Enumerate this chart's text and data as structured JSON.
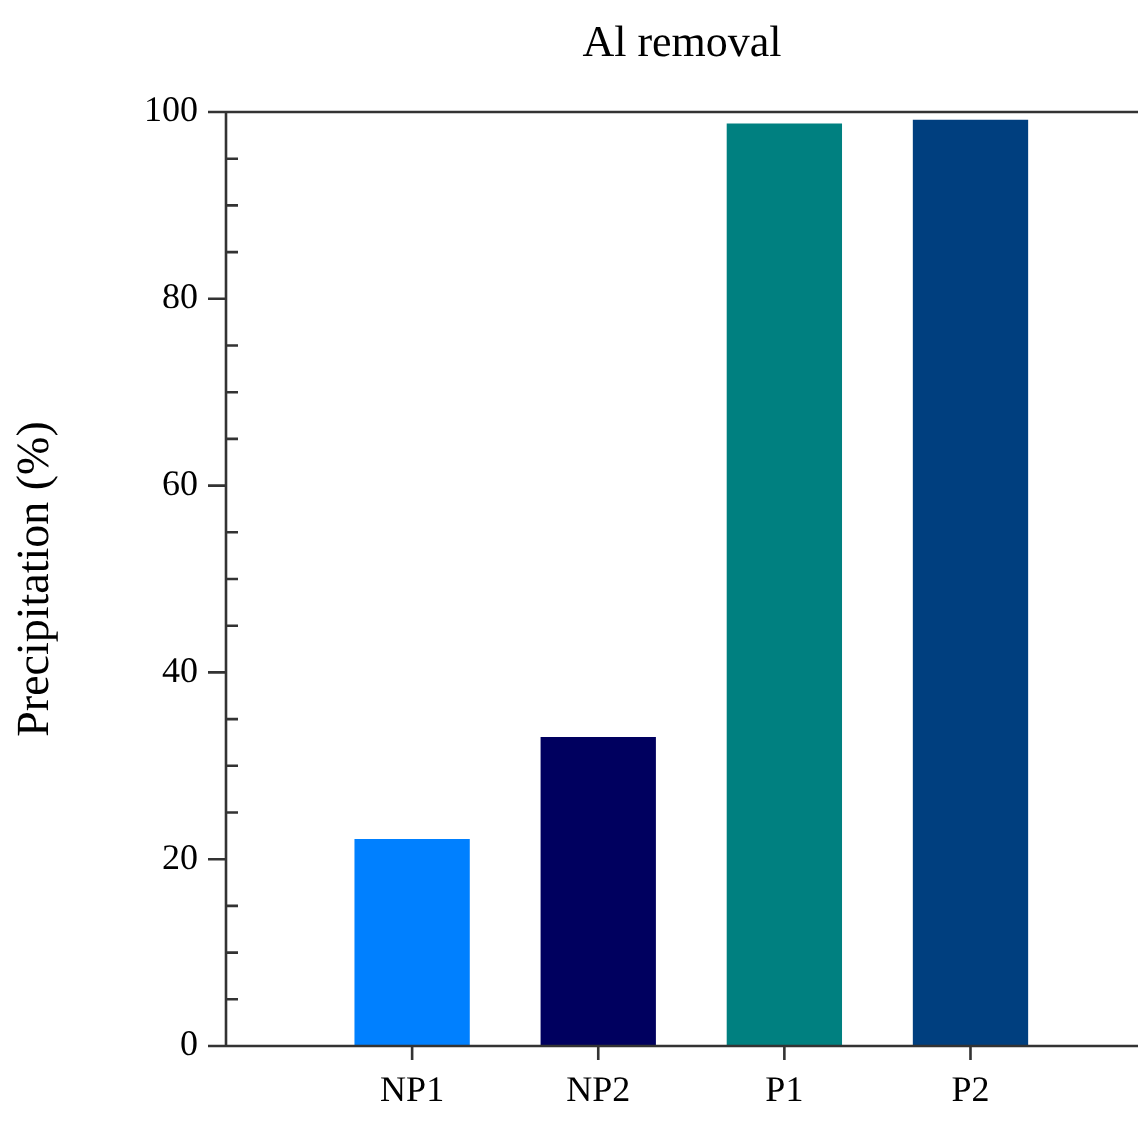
{
  "chart_data": {
    "type": "bar",
    "title": "Al removal",
    "ylabel": "Precipitation (%)",
    "categories": [
      "NP1",
      "NP2",
      "P1",
      "P2"
    ],
    "values": [
      22.1,
      33.0,
      98.7,
      99.1
    ],
    "colors": [
      "#0080ff",
      "#00005f",
      "#008080",
      "#003f7f"
    ],
    "ylim": [
      0,
      100
    ],
    "yticks": [
      0,
      {
        "value": 5,
        "label": null
      },
      {
        "value": 10,
        "label": null
      },
      {
        "value": 15,
        "label": null
      },
      20,
      {
        "value": 25,
        "label": null
      },
      {
        "value": 30,
        "label": null
      },
      {
        "value": 35,
        "label": null
      },
      40,
      {
        "value": 45,
        "label": null
      },
      {
        "value": 50,
        "label": null
      },
      {
        "value": 55,
        "label": null
      },
      60,
      {
        "value": 65,
        "label": null
      },
      {
        "value": 70,
        "label": null
      },
      {
        "value": 75,
        "label": null
      },
      80,
      {
        "value": 85,
        "label": null
      },
      {
        "value": 90,
        "label": null
      },
      {
        "value": 95,
        "label": null
      },
      100
    ],
    "grid": false,
    "legend": false
  }
}
